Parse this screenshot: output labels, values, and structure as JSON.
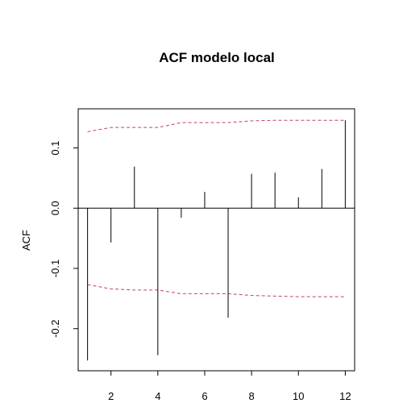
{
  "chart_data": {
    "type": "bar",
    "title": "ACF modelo local",
    "xlabel": "",
    "ylabel": "ACF",
    "xlim": [
      0.6,
      12.4
    ],
    "ylim": [
      -0.27,
      0.165
    ],
    "x_ticks": [
      2,
      4,
      6,
      8,
      10,
      12
    ],
    "y_ticks": [
      -0.2,
      -0.1,
      0.0,
      0.1
    ],
    "y_tick_labels": [
      "-0.2",
      "-0.1",
      "0.0",
      "0.1"
    ],
    "lags": [
      1,
      2,
      3,
      4,
      5,
      6,
      7,
      8,
      9,
      10,
      11,
      12
    ],
    "values": [
      -0.253,
      -0.057,
      0.069,
      -0.244,
      -0.016,
      0.027,
      -0.182,
      0.057,
      0.059,
      0.018,
      0.065,
      0.146
    ],
    "upper_bound": [
      0.127,
      0.134,
      0.134,
      0.134,
      0.142,
      0.142,
      0.142,
      0.145,
      0.146,
      0.146,
      0.146,
      0.146
    ],
    "lower_bound": [
      -0.127,
      -0.134,
      -0.136,
      -0.136,
      -0.142,
      -0.142,
      -0.142,
      -0.145,
      -0.146,
      -0.147,
      -0.147,
      -0.147
    ],
    "colors": {
      "bars": "#000000",
      "bounds": "#c0406a",
      "zero_line": "#000000"
    }
  }
}
